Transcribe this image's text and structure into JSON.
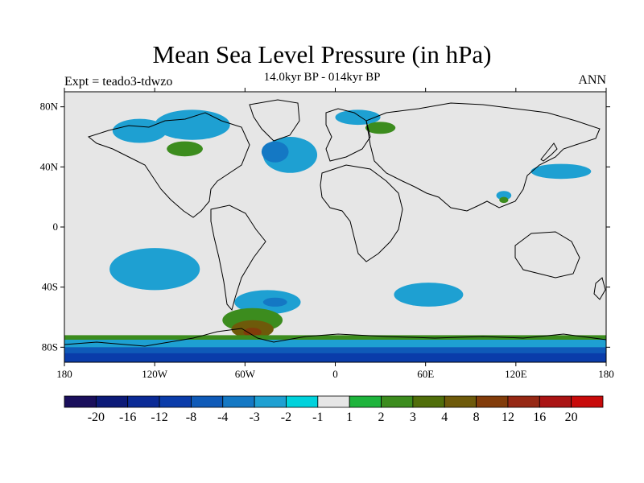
{
  "title": "Mean Sea Level Pressure (in hPa)",
  "subtitle": "14.0kyr BP - 014kyr BP",
  "left_label": "Expt = teado3-tdwzo",
  "right_label": "ANN",
  "colors": {
    "ocean_land_bg": "#e6e6e6",
    "coast": "#000000"
  },
  "chart_data": {
    "type": "heatmap",
    "projection": "equirectangular",
    "xlim": [
      -180,
      180
    ],
    "ylim": [
      -90,
      90
    ],
    "x_ticks": [
      {
        "value": -180,
        "label": "180"
      },
      {
        "value": -120,
        "label": "120W"
      },
      {
        "value": -60,
        "label": "60W"
      },
      {
        "value": 0,
        "label": "0"
      },
      {
        "value": 60,
        "label": "60E"
      },
      {
        "value": 120,
        "label": "120E"
      },
      {
        "value": 180,
        "label": "180"
      }
    ],
    "y_ticks": [
      {
        "value": 80,
        "label": "80N"
      },
      {
        "value": 40,
        "label": "40N"
      },
      {
        "value": 0,
        "label": "0"
      },
      {
        "value": -40,
        "label": "40S"
      },
      {
        "value": -80,
        "label": "80S"
      }
    ],
    "colorbar": {
      "labels": [
        "-20",
        "-16",
        "-12",
        "-8",
        "-4",
        "-3",
        "-2",
        "-1",
        "1",
        "2",
        "3",
        "4",
        "8",
        "12",
        "16",
        "20"
      ],
      "colors": [
        "#1a0f5c",
        "#0c1a78",
        "#0a2a96",
        "#0a3caa",
        "#0f5ab8",
        "#1478c4",
        "#1ea0d2",
        "#00d2dc",
        "#e6e6e6",
        "#1eb43c",
        "#3c8c1e",
        "#506e0a",
        "#6e5a0a",
        "#823c0a",
        "#962814",
        "#aa1414",
        "#c80a0a"
      ]
    },
    "regions": [
      {
        "level": "-2",
        "shape": "ellipse",
        "cx": -30,
        "cy": 48,
        "rx": 18,
        "ry": 12
      },
      {
        "level": "-3",
        "shape": "ellipse",
        "cx": -40,
        "cy": 50,
        "rx": 9,
        "ry": 7
      },
      {
        "level": "-2",
        "shape": "ellipse",
        "cx": -120,
        "cy": -28,
        "rx": 30,
        "ry": 14
      },
      {
        "level": "-2",
        "shape": "ellipse",
        "cx": -45,
        "cy": -50,
        "rx": 22,
        "ry": 8
      },
      {
        "level": "-3",
        "shape": "ellipse",
        "cx": -40,
        "cy": -50,
        "rx": 8,
        "ry": 3
      },
      {
        "level": "-2",
        "shape": "ellipse",
        "cx": 62,
        "cy": -45,
        "rx": 23,
        "ry": 8
      },
      {
        "level": "-2",
        "shape": "ellipse",
        "cx": 150,
        "cy": 37,
        "rx": 20,
        "ry": 5
      },
      {
        "level": "-2",
        "shape": "ellipse",
        "cx": 112,
        "cy": 21,
        "rx": 5,
        "ry": 3
      },
      {
        "level": "-2",
        "shape": "ellipse",
        "cx": 15,
        "cy": 73,
        "rx": 15,
        "ry": 5
      },
      {
        "level": "-2",
        "shape": "ellipse",
        "cx": -130,
        "cy": 64,
        "rx": 18,
        "ry": 8
      },
      {
        "level": "-2",
        "shape": "ellipse",
        "cx": -95,
        "cy": 68,
        "rx": 25,
        "ry": 10
      },
      {
        "level": "2",
        "shape": "ellipse",
        "cx": -100,
        "cy": 52,
        "rx": 12,
        "ry": 5
      },
      {
        "level": "2",
        "shape": "ellipse",
        "cx": 30,
        "cy": 66,
        "rx": 10,
        "ry": 4
      },
      {
        "level": "2",
        "shape": "ellipse",
        "cx": 112,
        "cy": 18,
        "rx": 3,
        "ry": 2
      },
      {
        "level": "2",
        "shape": "ellipse",
        "cx": -55,
        "cy": -62,
        "rx": 20,
        "ry": 8
      },
      {
        "level": "4",
        "shape": "ellipse",
        "cx": -55,
        "cy": -68,
        "rx": 14,
        "ry": 6
      },
      {
        "level": "8",
        "shape": "ellipse",
        "cx": -55,
        "cy": -70,
        "rx": 6,
        "ry": 3
      },
      {
        "level": "2",
        "shape": "band",
        "lat_from": -72,
        "lat_to": -90
      },
      {
        "level": "-2",
        "shape": "band",
        "lat_from": -75,
        "lat_to": -90
      },
      {
        "level": "-4",
        "shape": "band",
        "lat_from": -80,
        "lat_to": -90
      },
      {
        "level": "-8",
        "shape": "band",
        "lat_from": -84,
        "lat_to": -90
      }
    ]
  }
}
